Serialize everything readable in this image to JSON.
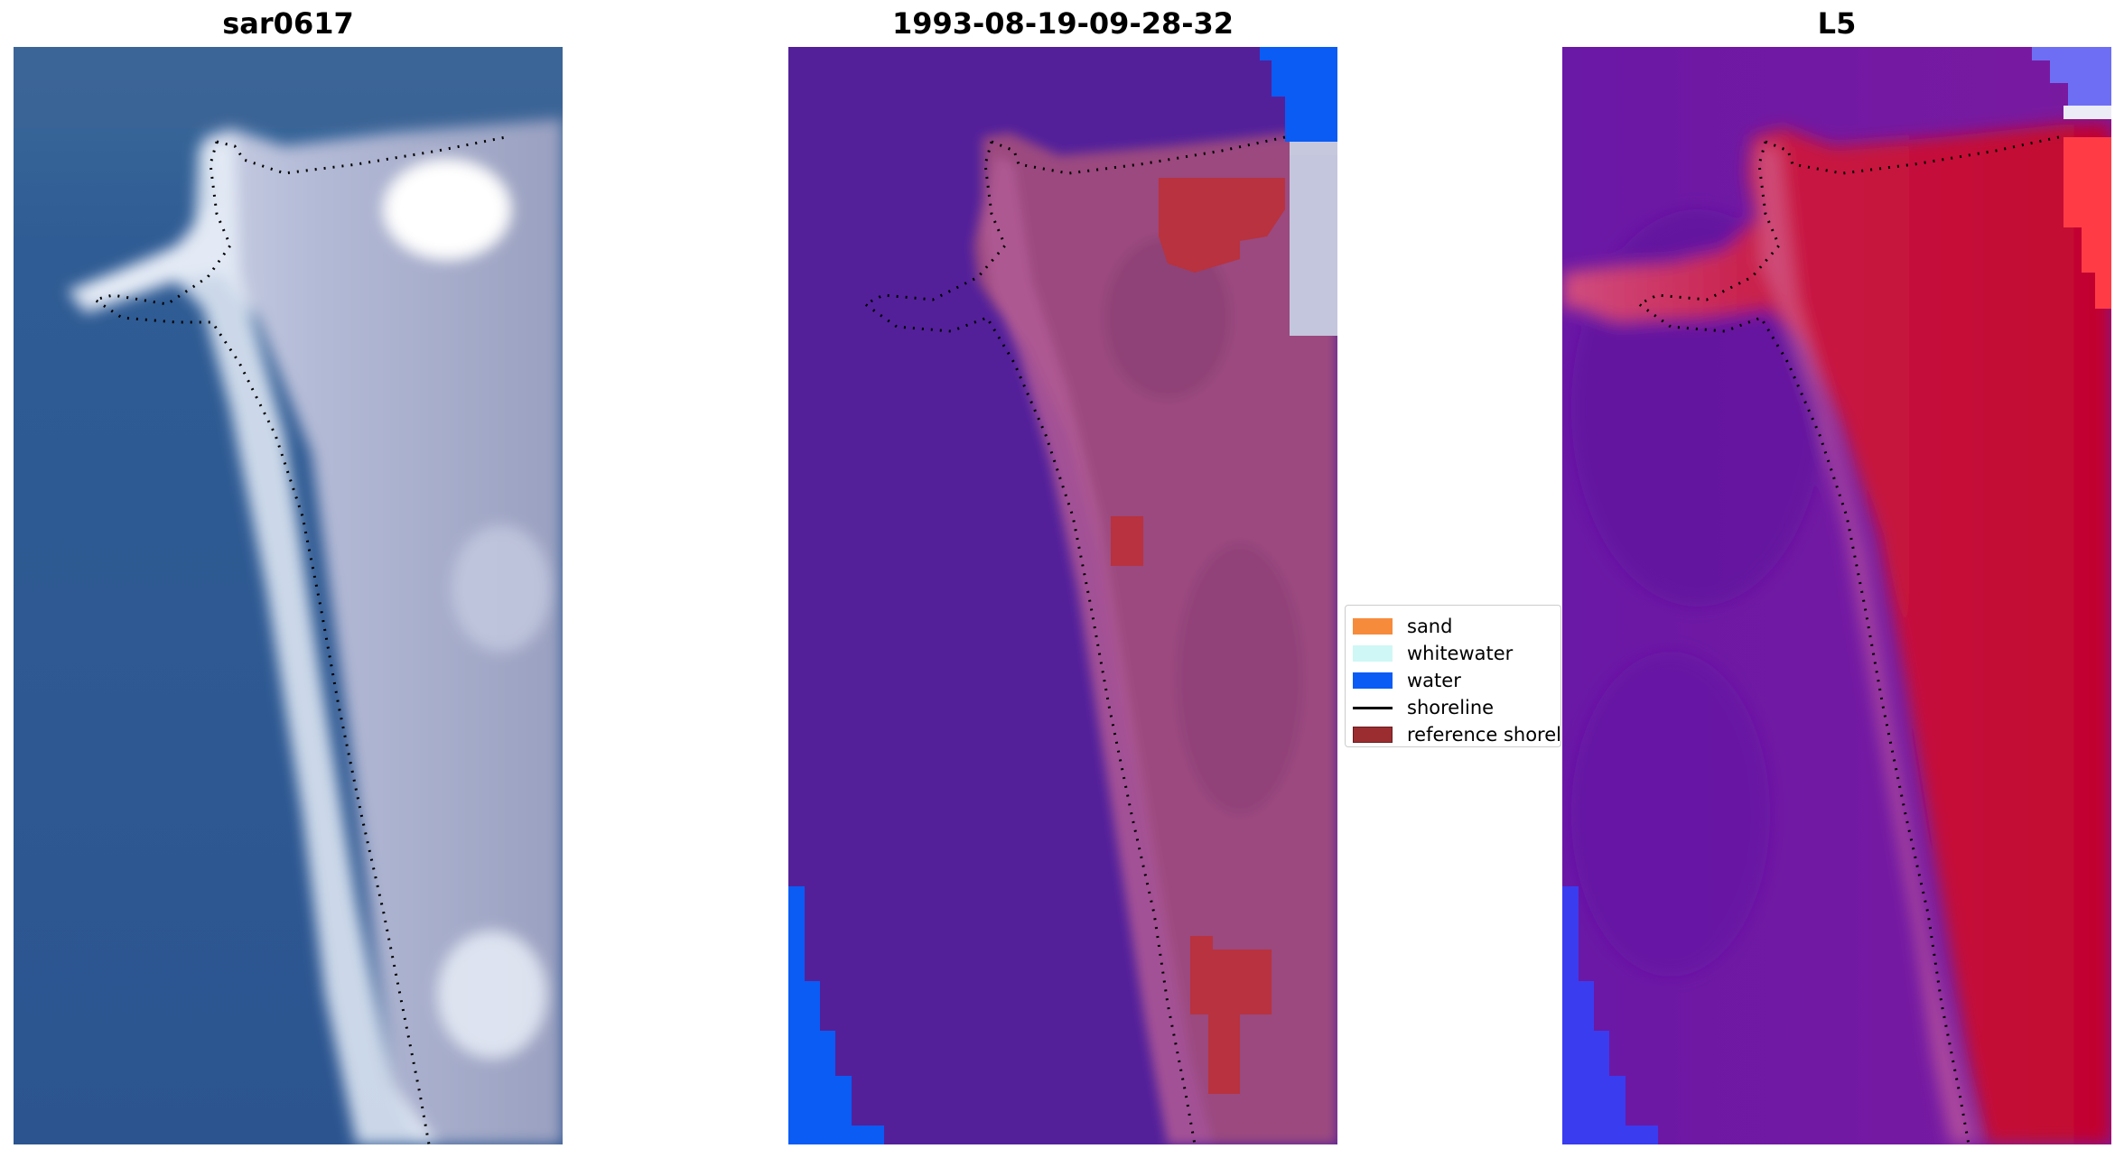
{
  "figure": {
    "panels": [
      {
        "title": "sar0617",
        "kind": "rgb-composite"
      },
      {
        "title": "1993-08-19-09-28-32",
        "kind": "classified-overlay"
      },
      {
        "title": "L5",
        "kind": "index-colormap"
      }
    ]
  },
  "chart_data": {
    "type": "image-panels",
    "panels": [
      "sar0617",
      "1993-08-19-09-28-32",
      "L5"
    ],
    "legend": [
      {
        "label": "sand",
        "color": "#f68b3c",
        "kind": "patch"
      },
      {
        "label": "whitewater",
        "color": "#cff7f5",
        "kind": "patch"
      },
      {
        "label": "water",
        "color": "#0a5cf5",
        "kind": "patch"
      },
      {
        "label": "shoreline",
        "color": "#000000",
        "kind": "line"
      },
      {
        "label": "reference shoreline",
        "color": "#9b2d30",
        "kind": "patch"
      }
    ],
    "colors": {
      "rgb_water": "#2e5a93",
      "rgb_beach": "#e6ecf6",
      "rgb_land": "#9aa3c2",
      "class_background": "#53209a",
      "class_land": "#9b4a7f",
      "class_reference": "#b8323f",
      "class_water": "#0a5cf5",
      "index_low": "#6a18a6",
      "index_high": "#c2042e"
    },
    "grid": false,
    "legend_placement": "center"
  }
}
